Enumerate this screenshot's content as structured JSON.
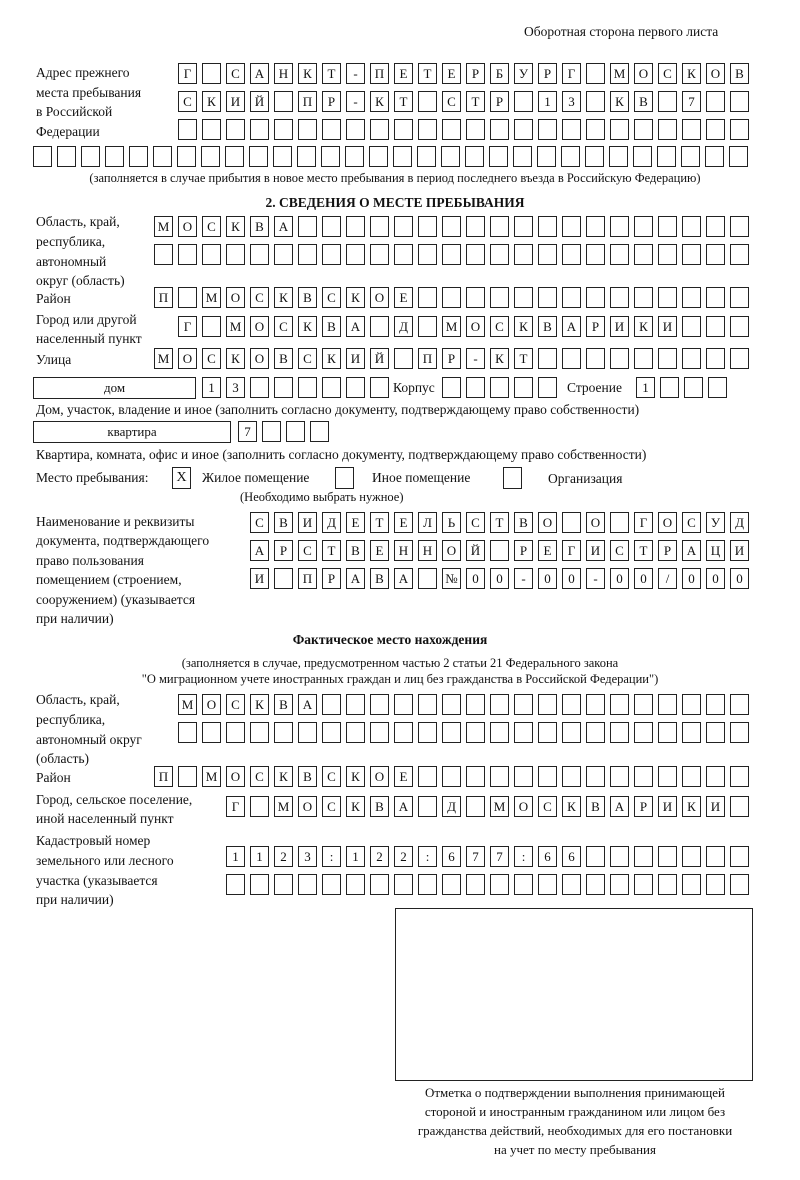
{
  "header": {
    "page_side": "Оборотная сторона первого листа"
  },
  "previous_address": {
    "label": [
      "Адрес прежнего",
      "места пребывания",
      "в Российской",
      "Федерации"
    ],
    "rows": [
      [
        "Г",
        "",
        "С",
        "А",
        "Н",
        "К",
        "Т",
        "-",
        "П",
        "Е",
        "Т",
        "Е",
        "Р",
        "Б",
        "У",
        "Р",
        "Г",
        "",
        "М",
        "О",
        "С",
        "К",
        "О",
        "В"
      ],
      [
        "С",
        "К",
        "И",
        "Й",
        "",
        "П",
        "Р",
        "-",
        "К",
        "Т",
        "",
        "С",
        "Т",
        "Р",
        "",
        "1",
        "3",
        "",
        "К",
        "В",
        "",
        "7",
        "",
        ""
      ],
      [
        "",
        "",
        "",
        "",
        "",
        "",
        "",
        "",
        "",
        "",
        "",
        "",
        "",
        "",
        "",
        "",
        "",
        "",
        "",
        "",
        "",
        "",
        "",
        ""
      ],
      [
        "",
        "",
        "",
        "",
        "",
        "",
        "",
        "",
        "",
        "",
        "",
        "",
        "",
        "",
        "",
        "",
        "",
        "",
        "",
        "",
        "",
        "",
        "",
        "",
        "",
        "",
        "",
        "",
        "",
        ""
      ]
    ],
    "note": "(заполняется в случае прибытия в новое место пребывания в период последнего въезда в Российскую Федерацию)"
  },
  "section2": {
    "title": "2. СВЕДЕНИЯ О МЕСТЕ ПРЕБЫВАНИЯ",
    "region_label": [
      "Область, край,",
      "республика,",
      "автономный",
      "округ (область)"
    ],
    "region_rows": [
      [
        "М",
        "О",
        "С",
        "К",
        "В",
        "А",
        "",
        "",
        "",
        "",
        "",
        "",
        "",
        "",
        "",
        "",
        "",
        "",
        "",
        "",
        "",
        "",
        "",
        "",
        ""
      ],
      [
        "",
        "",
        "",
        "",
        "",
        "",
        "",
        "",
        "",
        "",
        "",
        "",
        "",
        "",
        "",
        "",
        "",
        "",
        "",
        "",
        "",
        "",
        "",
        "",
        ""
      ]
    ],
    "district_label": "Район",
    "district_row": [
      "П",
      "",
      "М",
      "О",
      "С",
      "К",
      "В",
      "С",
      "К",
      "О",
      "Е",
      "",
      "",
      "",
      "",
      "",
      "",
      "",
      "",
      "",
      "",
      "",
      "",
      "",
      ""
    ],
    "city_label": [
      "Город или другой",
      "населенный пункт"
    ],
    "city_row": [
      "Г",
      "",
      "М",
      "О",
      "С",
      "К",
      "В",
      "А",
      "",
      "Д",
      "",
      "М",
      "О",
      "С",
      "К",
      "В",
      "А",
      "Р",
      "И",
      "К",
      "И",
      "",
      "",
      ""
    ],
    "street_label": "Улица",
    "street_row": [
      "М",
      "О",
      "С",
      "К",
      "О",
      "В",
      "С",
      "К",
      "И",
      "Й",
      "",
      "П",
      "Р",
      "-",
      "К",
      "Т",
      "",
      "",
      "",
      "",
      "",
      "",
      "",
      "",
      ""
    ],
    "house_type": "дом",
    "house_cells": [
      "1",
      "3",
      "",
      "",
      "",
      "",
      "",
      ""
    ],
    "korpus_label": "Корпус",
    "korpus_cells": [
      "",
      "",
      "",
      "",
      ""
    ],
    "building_label": "Строение",
    "building_cells": [
      "1",
      "",
      "",
      ""
    ],
    "house_note": "Дом, участок, владение и иное (заполнить согласно документу, подтверждающему право собственности)",
    "apt_type": "квартира",
    "apt_cells": [
      "7",
      "",
      "",
      ""
    ],
    "apt_note": "Квартира, комната, офис и иное (заполнить согласно документу, подтверждающему право собственности)",
    "stay_label": "Место пребывания:",
    "stay_options": [
      {
        "label": "Жилое помещение",
        "mark": "X"
      },
      {
        "label": "Иное помещение",
        "mark": ""
      },
      {
        "label": "Организация",
        "mark": ""
      }
    ],
    "stay_hint": "(Необходимо выбрать нужное)",
    "doc_label": [
      "Наименование и реквизиты",
      "документа, подтверждающего",
      "право пользования",
      "помещением (строением,",
      "сооружением) (указывается",
      "при наличии)"
    ],
    "doc_rows": [
      [
        "С",
        "В",
        "И",
        "Д",
        "Е",
        "Т",
        "Е",
        "Л",
        "Ь",
        "С",
        "Т",
        "В",
        "О",
        "",
        "О",
        "",
        "Г",
        "О",
        "С",
        "У",
        "Д"
      ],
      [
        "А",
        "Р",
        "С",
        "Т",
        "В",
        "Е",
        "Н",
        "Н",
        "О",
        "Й",
        "",
        "Р",
        "Е",
        "Г",
        "И",
        "С",
        "Т",
        "Р",
        "А",
        "Ц",
        "И"
      ],
      [
        "И",
        "",
        "П",
        "Р",
        "А",
        "В",
        "А",
        "",
        "№",
        "0",
        "0",
        "-",
        "0",
        "0",
        "-",
        "0",
        "0",
        "/",
        "0",
        "0",
        "0"
      ]
    ]
  },
  "actual": {
    "title": "Фактическое место нахождения",
    "note": [
      "(заполняется в случае, предусмотренном частью 2 статьи 21 Федерального закона",
      "\"О миграционном учете иностранных граждан и лиц без гражданства в Российской Федерации\")"
    ],
    "region_label": [
      "Область, край,",
      "республика,",
      "автономный округ",
      "(область)"
    ],
    "region_rows": [
      [
        "М",
        "О",
        "С",
        "К",
        "В",
        "А",
        "",
        "",
        "",
        "",
        "",
        "",
        "",
        "",
        "",
        "",
        "",
        "",
        "",
        "",
        "",
        "",
        "",
        ""
      ],
      [
        "",
        "",
        "",
        "",
        "",
        "",
        "",
        "",
        "",
        "",
        "",
        "",
        "",
        "",
        "",
        "",
        "",
        "",
        "",
        "",
        "",
        "",
        "",
        ""
      ]
    ],
    "district_label": "Район",
    "district_row": [
      "П",
      "",
      "М",
      "О",
      "С",
      "К",
      "В",
      "С",
      "К",
      "О",
      "Е",
      "",
      "",
      "",
      "",
      "",
      "",
      "",
      "",
      "",
      "",
      "",
      "",
      "",
      ""
    ],
    "city_label": [
      "Город, сельское поселение,",
      "иной населенный пункт"
    ],
    "city_row": [
      "Г",
      "",
      "М",
      "О",
      "С",
      "К",
      "В",
      "А",
      "",
      "Д",
      "",
      "М",
      "О",
      "С",
      "К",
      "В",
      "А",
      "Р",
      "И",
      "К",
      "И",
      ""
    ],
    "cadastral_label": [
      "Кадастровый номер",
      "земельного или лесного",
      "участка (указывается",
      "при наличии)"
    ],
    "cadastral_rows": [
      [
        "1",
        "1",
        "2",
        "3",
        ":",
        "1",
        "2",
        "2",
        ":",
        "6",
        "7",
        "7",
        ":",
        "6",
        "6",
        "",
        "",
        "",
        "",
        "",
        "",
        ""
      ],
      [
        "",
        "",
        "",
        "",
        "",
        "",
        "",
        "",
        "",
        "",
        "",
        "",
        "",
        "",
        "",
        "",
        "",
        "",
        "",
        "",
        "",
        ""
      ]
    ]
  },
  "stamp": {
    "caption": [
      "Отметка о подтверждении выполнения принимающей",
      "стороной и иностранным гражданином или лицом без",
      "гражданства действий, необходимых для его постановки",
      "на учет по месту пребывания"
    ]
  }
}
